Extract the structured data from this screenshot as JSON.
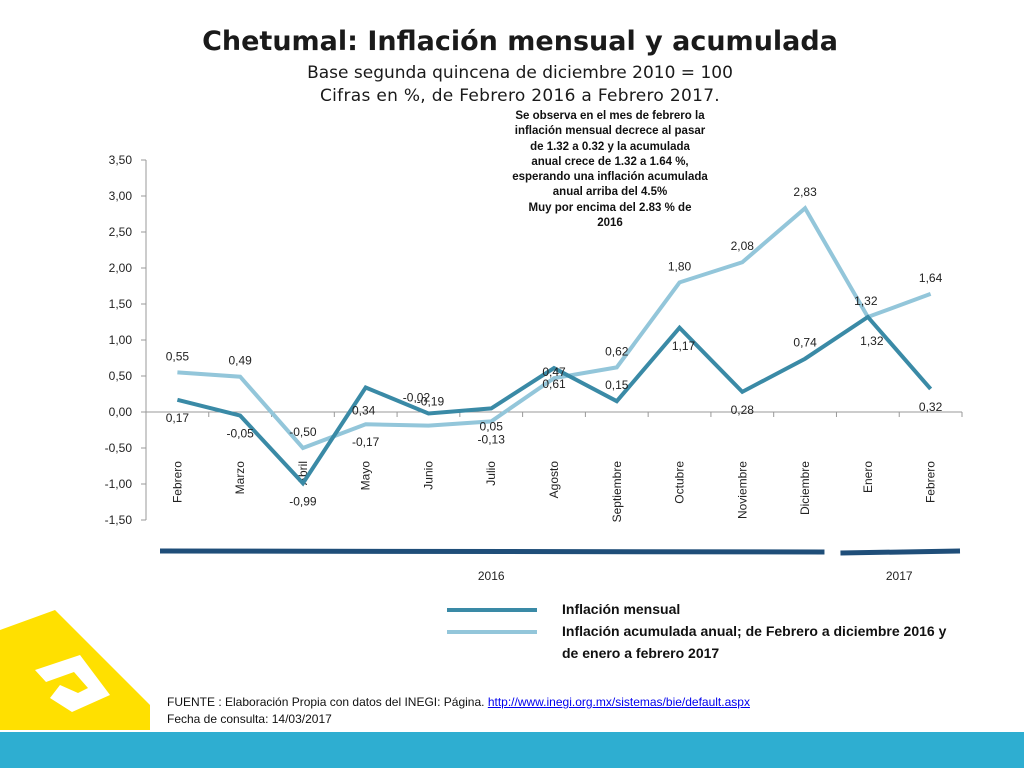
{
  "title": "Chetumal: Inflación mensual y acumulada",
  "subtitle_1": "Base segunda quincena de diciembre 2010 = 100",
  "subtitle_2": "Cifras en %,  de Febrero 2016 a Febrero 2017.",
  "annotation": "Se observa en el mes de febrero  la\ninflación mensual decrece al pasar\nde 1.32 a  0.32 y la acumulada\nanual crece de 1.32 a 1.64 %,\nesperando una inflación acumulada\nanual arriba del 4.5%\nMuy por encima del 2.83 % de\n2016",
  "source": {
    "prefix": "FUENTE : Elaboración Propia con datos del INEGI: Página. ",
    "link_text": "http://www.inegi.org.mx/sistemas/bie/default.aspx",
    "date_line": "Fecha de consulta: 14/03/2017"
  },
  "colors": {
    "mensual": "#3a8aa6",
    "acumulada": "#93c6da",
    "year_bar": "#1f4e79",
    "bottom_band": "#2eaed1",
    "logo": "#ffe000"
  },
  "chart_data": {
    "type": "line",
    "categories": [
      "Febrero",
      "Marzo",
      "Abril",
      "Mayo",
      "Junio",
      "Julio",
      "Agosto",
      "Septiembre",
      "Octubre",
      "Noviembre",
      "Diciembre",
      "Enero",
      "Febrero"
    ],
    "year_groups": [
      {
        "label": "2016",
        "start": 0,
        "end": 10
      },
      {
        "label": "2017",
        "start": 11,
        "end": 12
      }
    ],
    "ylim": [
      -1.5,
      3.5
    ],
    "yticks": [
      3.5,
      3.0,
      2.5,
      2.0,
      1.5,
      1.0,
      0.5,
      0.0,
      -0.5,
      -1.0,
      -1.5
    ],
    "ytick_labels": [
      "3,50",
      "3,00",
      "2,50",
      "2,00",
      "1,50",
      "1,00",
      "0,50",
      "0,00",
      "-0,50",
      "-1,00",
      "-1,50"
    ],
    "grid": false,
    "legend_position": "bottom",
    "series": [
      {
        "name": "Inflación mensual",
        "values": [
          0.17,
          -0.05,
          -0.99,
          0.34,
          -0.02,
          0.05,
          0.61,
          0.15,
          1.17,
          0.28,
          0.74,
          1.32,
          0.32
        ],
        "labels": [
          "0,17",
          "-0,05",
          "-0,99",
          "0,34",
          "-0,02",
          "0,05",
          "0,61",
          "0,15",
          "1,17",
          "0,28",
          "0,74",
          "1,32",
          "0,32"
        ]
      },
      {
        "name": "Inflación  acumulada anual; de Febrero a  diciembre 2016 y de enero a febrero 2017",
        "values": [
          0.55,
          0.49,
          -0.5,
          -0.17,
          -0.19,
          -0.13,
          0.47,
          0.62,
          1.8,
          2.08,
          2.83,
          1.32,
          1.64
        ],
        "labels": [
          "0,55",
          "0,49",
          "-0,50",
          "-0,17",
          "-0,19",
          "-0,13",
          "0,47",
          "0,62",
          "1,80",
          "2,08",
          "2,83",
          "1,32",
          "1,64"
        ]
      }
    ]
  }
}
